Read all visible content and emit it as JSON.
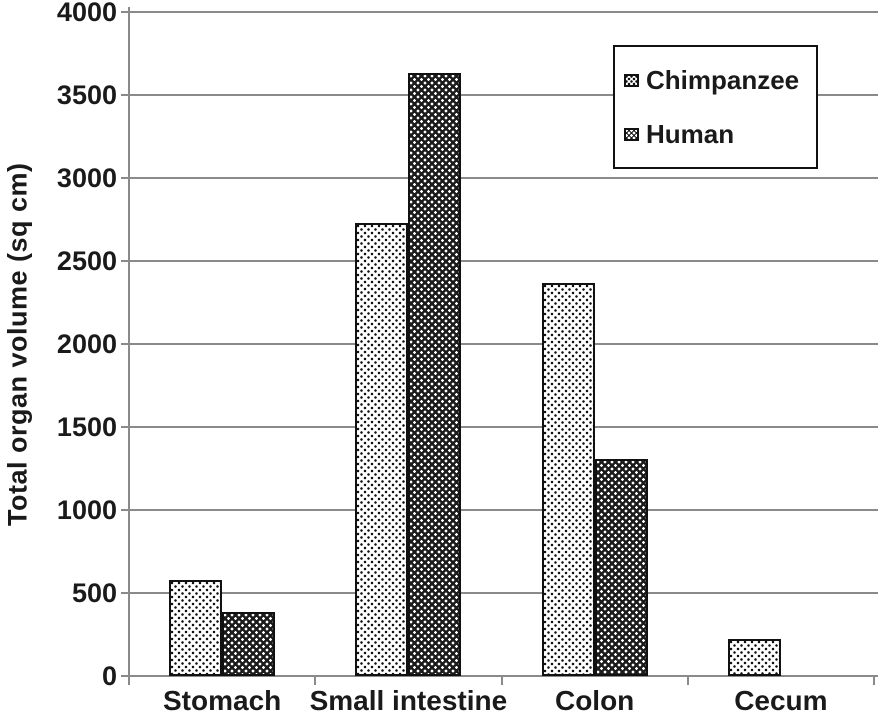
{
  "chart_data": {
    "type": "bar",
    "title": "",
    "ylabel": "Total organ volume (sq cm)",
    "xlabel": "",
    "categories": [
      "Stomach",
      "Small intestine",
      "Colon",
      "Cecum"
    ],
    "series": [
      {
        "name": "Chimpanzee",
        "swatch": "white-with-black-dots",
        "values": [
          580,
          2730,
          2370,
          225
        ]
      },
      {
        "name": "Human",
        "swatch": "black-with-white-dots",
        "values": [
          385,
          3630,
          1310,
          0
        ]
      }
    ],
    "ylim": [
      0,
      4000
    ],
    "yticks": [
      0,
      500,
      1000,
      1500,
      2000,
      2500,
      3000,
      3500,
      4000
    ],
    "grid": "horizontal",
    "legend_position": "top-right",
    "colors": {
      "gridline": "#8a8a8a",
      "text": "#1a1a1a",
      "bar_border": "#111111",
      "chimpanzee_fill": "#ffffff",
      "chimpanzee_dots": "#111111",
      "human_fill": "#1c1c1c",
      "human_dots": "#ffffff"
    }
  }
}
